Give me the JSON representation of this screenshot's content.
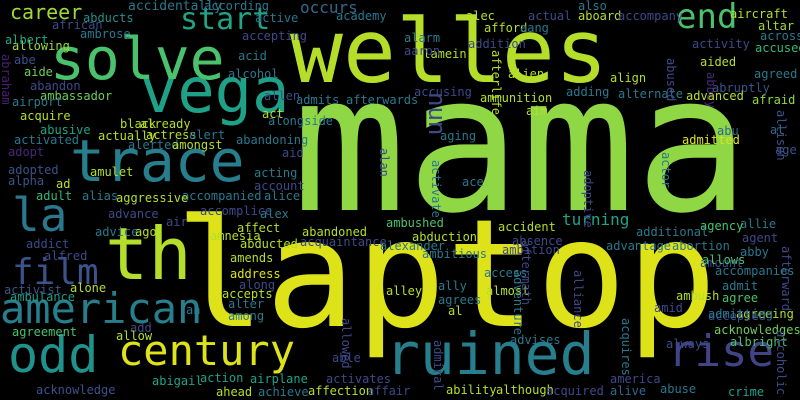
{
  "words": [
    {
      "text": "mama",
      "color": "#8fd744"
    },
    {
      "text": "laptop",
      "color": "#dde318"
    },
    {
      "text": "welles",
      "color": "#b5de2b"
    },
    {
      "text": "vega",
      "color": "#1fa187"
    },
    {
      "text": "solve",
      "color": "#4ac16d"
    },
    {
      "text": "trace",
      "color": "#277f8e"
    },
    {
      "text": "th",
      "color": "#b5de2b"
    },
    {
      "text": "ruined",
      "color": "#277f8e"
    },
    {
      "text": "odd",
      "color": "#20928c"
    },
    {
      "text": "american",
      "color": "#277f8e"
    },
    {
      "text": "century",
      "color": "#dde318"
    },
    {
      "text": "rise",
      "color": "#414487"
    },
    {
      "text": "la",
      "color": "#2a788e"
    },
    {
      "text": "film",
      "color": "#3b528b"
    },
    {
      "text": "end",
      "color": "#4ac16d"
    },
    {
      "text": "start",
      "color": "#20a486"
    },
    {
      "text": "nun",
      "color": "#3e4989"
    },
    {
      "text": "turning",
      "color": "#20a486"
    },
    {
      "text": "career",
      "color": "#9fda3a"
    },
    {
      "text": "occurs",
      "color": "#31688e"
    },
    {
      "text": "accidentally",
      "color": "#2a788e"
    },
    {
      "text": "aircraft",
      "color": "#b5de2b"
    },
    {
      "text": "altar",
      "color": "#9fda3a"
    },
    {
      "text": "accused",
      "color": "#35b779"
    },
    {
      "text": "across",
      "color": "#2a788e"
    },
    {
      "text": "activity",
      "color": "#3e4989"
    },
    {
      "text": "aided",
      "color": "#b5de2b"
    },
    {
      "text": "abbey",
      "color": "#482878"
    },
    {
      "text": "abruptly",
      "color": "#3b528b"
    },
    {
      "text": "agreed",
      "color": "#2a788e"
    },
    {
      "text": "afraid",
      "color": "#8fd744"
    },
    {
      "text": "advanced",
      "color": "#b5de2b"
    },
    {
      "text": "admitted",
      "color": "#dde318"
    },
    {
      "text": "allison",
      "color": "#3b528b"
    },
    {
      "text": "abu",
      "color": "#31688e"
    },
    {
      "text": "al",
      "color": "#31688e"
    },
    {
      "text": "age",
      "color": "#3b528b"
    },
    {
      "text": "abducts",
      "color": "#21918c"
    },
    {
      "text": "african",
      "color": "#3e4989"
    },
    {
      "text": "ambrose",
      "color": "#2a788e"
    },
    {
      "text": "allowing",
      "color": "#9fda3a"
    },
    {
      "text": "abe",
      "color": "#3b528b"
    },
    {
      "text": "aide",
      "color": "#6ece58"
    },
    {
      "text": "abraham",
      "color": "#481f70"
    },
    {
      "text": "albert",
      "color": "#20a486"
    },
    {
      "text": "abandon",
      "color": "#3e4989"
    },
    {
      "text": "ambassador",
      "color": "#6ece58"
    },
    {
      "text": "airport",
      "color": "#2a788e"
    },
    {
      "text": "acquire",
      "color": "#b5de2b"
    },
    {
      "text": "abusive",
      "color": "#20a486"
    },
    {
      "text": "activated",
      "color": "#2a788e"
    },
    {
      "text": "adopt",
      "color": "#482878"
    },
    {
      "text": "adopted",
      "color": "#3b528b"
    },
    {
      "text": "alpha",
      "color": "#3b528b"
    },
    {
      "text": "adult",
      "color": "#35b779"
    },
    {
      "text": "addict",
      "color": "#3e4989"
    },
    {
      "text": "alfred",
      "color": "#3e4989"
    },
    {
      "text": "activist",
      "color": "#3b528b"
    },
    {
      "text": "ambulance",
      "color": "#1f9e89"
    },
    {
      "text": "agreement",
      "color": "#4ac16d"
    },
    {
      "text": "acknowledge",
      "color": "#3b528b"
    },
    {
      "text": "abigail",
      "color": "#20a486"
    },
    {
      "text": "ahead",
      "color": "#b5de2b"
    },
    {
      "text": "achieve",
      "color": "#2a788e"
    },
    {
      "text": "affection",
      "color": "#b5de2b"
    },
    {
      "text": "affair",
      "color": "#3e4989"
    },
    {
      "text": "ability",
      "color": "#b5de2b"
    },
    {
      "text": "although",
      "color": "#b5de2b"
    },
    {
      "text": "acquired",
      "color": "#3e4989"
    },
    {
      "text": "alive",
      "color": "#31688e"
    },
    {
      "text": "abuse",
      "color": "#2a788e"
    },
    {
      "text": "crime",
      "color": "#1fa187"
    },
    {
      "text": "america",
      "color": "#3e4989"
    },
    {
      "text": "action",
      "color": "#1fa187"
    },
    {
      "text": "airplane",
      "color": "#20a486"
    },
    {
      "text": "activates",
      "color": "#3e4989"
    },
    {
      "text": "able",
      "color": "#3e4989"
    },
    {
      "text": "advises",
      "color": "#2a788e"
    },
    {
      "text": "acquires",
      "color": "#2a788e"
    },
    {
      "text": "always",
      "color": "#3e4989"
    },
    {
      "text": "albright",
      "color": "#4ac16d"
    },
    {
      "text": "acknowledges",
      "color": "#6ece58"
    },
    {
      "text": "alcoholic",
      "color": "#3e4989"
    },
    {
      "text": "agreeing",
      "color": "#b5de2b"
    },
    {
      "text": "accepted",
      "color": "#3e4989"
    },
    {
      "text": "amount",
      "color": "#3e4989"
    },
    {
      "text": "afterward",
      "color": "#3e4989"
    },
    {
      "text": "accompanies",
      "color": "#2a788e"
    },
    {
      "text": "allie",
      "color": "#2a788e"
    },
    {
      "text": "agent",
      "color": "#3e4989"
    },
    {
      "text": "abby",
      "color": "#2a788e"
    },
    {
      "text": "agency",
      "color": "#4ac16d"
    },
    {
      "text": "allows",
      "color": "#4ac16d"
    },
    {
      "text": "abortion",
      "color": "#2a788e"
    },
    {
      "text": "admit",
      "color": "#2a788e"
    },
    {
      "text": "agree",
      "color": "#4ac16d"
    },
    {
      "text": "ambush",
      "color": "#b5de2b"
    },
    {
      "text": "amid",
      "color": "#3e4989"
    },
    {
      "text": "additional",
      "color": "#2a788e"
    },
    {
      "text": "advantage",
      "color": "#2a788e"
    },
    {
      "text": "actor",
      "color": "#2a788e"
    },
    {
      "text": "adoptive",
      "color": "#3e4989"
    },
    {
      "text": "ace",
      "color": "#2a788e"
    },
    {
      "text": "accident",
      "color": "#b5de2b"
    },
    {
      "text": "absence",
      "color": "#3e4989"
    },
    {
      "text": "ambition",
      "color": "#3e4989"
    },
    {
      "text": "ambitious",
      "color": "#2a788e"
    },
    {
      "text": "ambushed",
      "color": "#4ac16d"
    },
    {
      "text": "abduction",
      "color": "#b5de2b"
    },
    {
      "text": "alexander",
      "color": "#2a788e"
    },
    {
      "text": "abandoned",
      "color": "#b5de2b"
    },
    {
      "text": "acquaintance",
      "color": "#3e4989"
    },
    {
      "text": "access",
      "color": "#2a788e"
    },
    {
      "text": "almost",
      "color": "#b5de2b"
    },
    {
      "text": "adventure",
      "color": "#2a788e"
    },
    {
      "text": "alliance",
      "color": "#3e4989"
    },
    {
      "text": "aftermath",
      "color": "#3e4989"
    },
    {
      "text": "admiral",
      "color": "#3e4989"
    },
    {
      "text": "ally",
      "color": "#2a788e"
    },
    {
      "text": "agrees",
      "color": "#2a788e"
    },
    {
      "text": "alley",
      "color": "#b5de2b"
    },
    {
      "text": "al",
      "color": "#b5de2b"
    },
    {
      "text": "address",
      "color": "#dde318"
    },
    {
      "text": "amends",
      "color": "#b5de2b"
    },
    {
      "text": "along",
      "color": "#3e4989"
    },
    {
      "text": "abducted",
      "color": "#b5de2b"
    },
    {
      "text": "affect",
      "color": "#b5de2b"
    },
    {
      "text": "accomplice",
      "color": "#3e4989"
    },
    {
      "text": "alex",
      "color": "#2a788e"
    },
    {
      "text": "amnesia",
      "color": "#b5de2b"
    },
    {
      "text": "advance",
      "color": "#3e4989"
    },
    {
      "text": "air",
      "color": "#3e4989"
    },
    {
      "text": "advice",
      "color": "#2a788e"
    },
    {
      "text": "ago",
      "color": "#b5de2b"
    },
    {
      "text": "accepts",
      "color": "#b5de2b"
    },
    {
      "text": "alter",
      "color": "#2a788e"
    },
    {
      "text": "among",
      "color": "#2a788e"
    },
    {
      "text": "ah",
      "color": "#2a788e"
    },
    {
      "text": "alone",
      "color": "#b5de2b"
    },
    {
      "text": "add",
      "color": "#3e4989"
    },
    {
      "text": "allow",
      "color": "#b5de2b"
    },
    {
      "text": "allowed",
      "color": "#3e4989"
    },
    {
      "text": "accompanied",
      "color": "#2a788e"
    },
    {
      "text": "aggressive",
      "color": "#b5de2b"
    },
    {
      "text": "alias",
      "color": "#2a788e"
    },
    {
      "text": "acting",
      "color": "#2a788e"
    },
    {
      "text": "account",
      "color": "#3e4989"
    },
    {
      "text": "alice",
      "color": "#2a788e"
    },
    {
      "text": "ad",
      "color": "#b5de2b"
    },
    {
      "text": "amulet",
      "color": "#b5de2b"
    },
    {
      "text": "alerted",
      "color": "#2a788e"
    },
    {
      "text": "amongst",
      "color": "#b5de2b"
    },
    {
      "text": "actress",
      "color": "#b5de2b"
    },
    {
      "text": "alert",
      "color": "#2a788e"
    },
    {
      "text": "abandoning",
      "color": "#2a788e"
    },
    {
      "text": "aid",
      "color": "#3e4989"
    },
    {
      "text": "actually",
      "color": "#b5de2b"
    },
    {
      "text": "already",
      "color": "#b5de2b"
    },
    {
      "text": "black",
      "color": "#b5de2b"
    },
    {
      "text": "alongside",
      "color": "#2a788e"
    },
    {
      "text": "act",
      "color": "#b5de2b"
    },
    {
      "text": "admits",
      "color": "#2a788e"
    },
    {
      "text": "afterwards",
      "color": "#2a788e"
    },
    {
      "text": "allen",
      "color": "#3e4989"
    },
    {
      "text": "aging",
      "color": "#2a788e"
    },
    {
      "text": "activate",
      "color": "#2a788e"
    },
    {
      "text": "alan",
      "color": "#3e4989"
    },
    {
      "text": "aim",
      "color": "#b5de2b"
    },
    {
      "text": "ammunition",
      "color": "#b5de2b"
    },
    {
      "text": "alien",
      "color": "#b5de2b"
    },
    {
      "text": "adding",
      "color": "#2a788e"
    },
    {
      "text": "align",
      "color": "#b5de2b"
    },
    {
      "text": "alternate",
      "color": "#2a788e"
    },
    {
      "text": "afterlife",
      "color": "#b5de2b"
    },
    {
      "text": "abused",
      "color": "#3e4989"
    },
    {
      "text": "accusing",
      "color": "#3e4989"
    },
    {
      "text": "alamein",
      "color": "#b5de2b"
    },
    {
      "text": "acid",
      "color": "#2a788e"
    },
    {
      "text": "alcohol",
      "color": "#2a788e"
    },
    {
      "text": "accepting",
      "color": "#3e4989"
    },
    {
      "text": "active",
      "color": "#2a788e"
    },
    {
      "text": "academy",
      "color": "#2a788e"
    },
    {
      "text": "alarm",
      "color": "#2a788e"
    },
    {
      "text": "aaron",
      "color": "#3e4989"
    },
    {
      "text": "afford",
      "color": "#b5de2b"
    },
    {
      "text": "addition",
      "color": "#3e4989"
    },
    {
      "text": "aang",
      "color": "#2a788e"
    },
    {
      "text": "alec",
      "color": "#b5de2b"
    },
    {
      "text": "actual",
      "color": "#3e4989"
    },
    {
      "text": "also",
      "color": "#2a788e"
    },
    {
      "text": "aboard",
      "color": "#b5de2b"
    },
    {
      "text": "accompany",
      "color": "#3e4989"
    },
    {
      "text": "according",
      "color": "#2a788e"
    },
    {
      "text": "admitting",
      "color": "#2a788e"
    },
    {
      "text": "alison",
      "color": "#3e4989"
    },
    {
      "text": "accept",
      "color": "#b5de2b"
    }
  ]
}
